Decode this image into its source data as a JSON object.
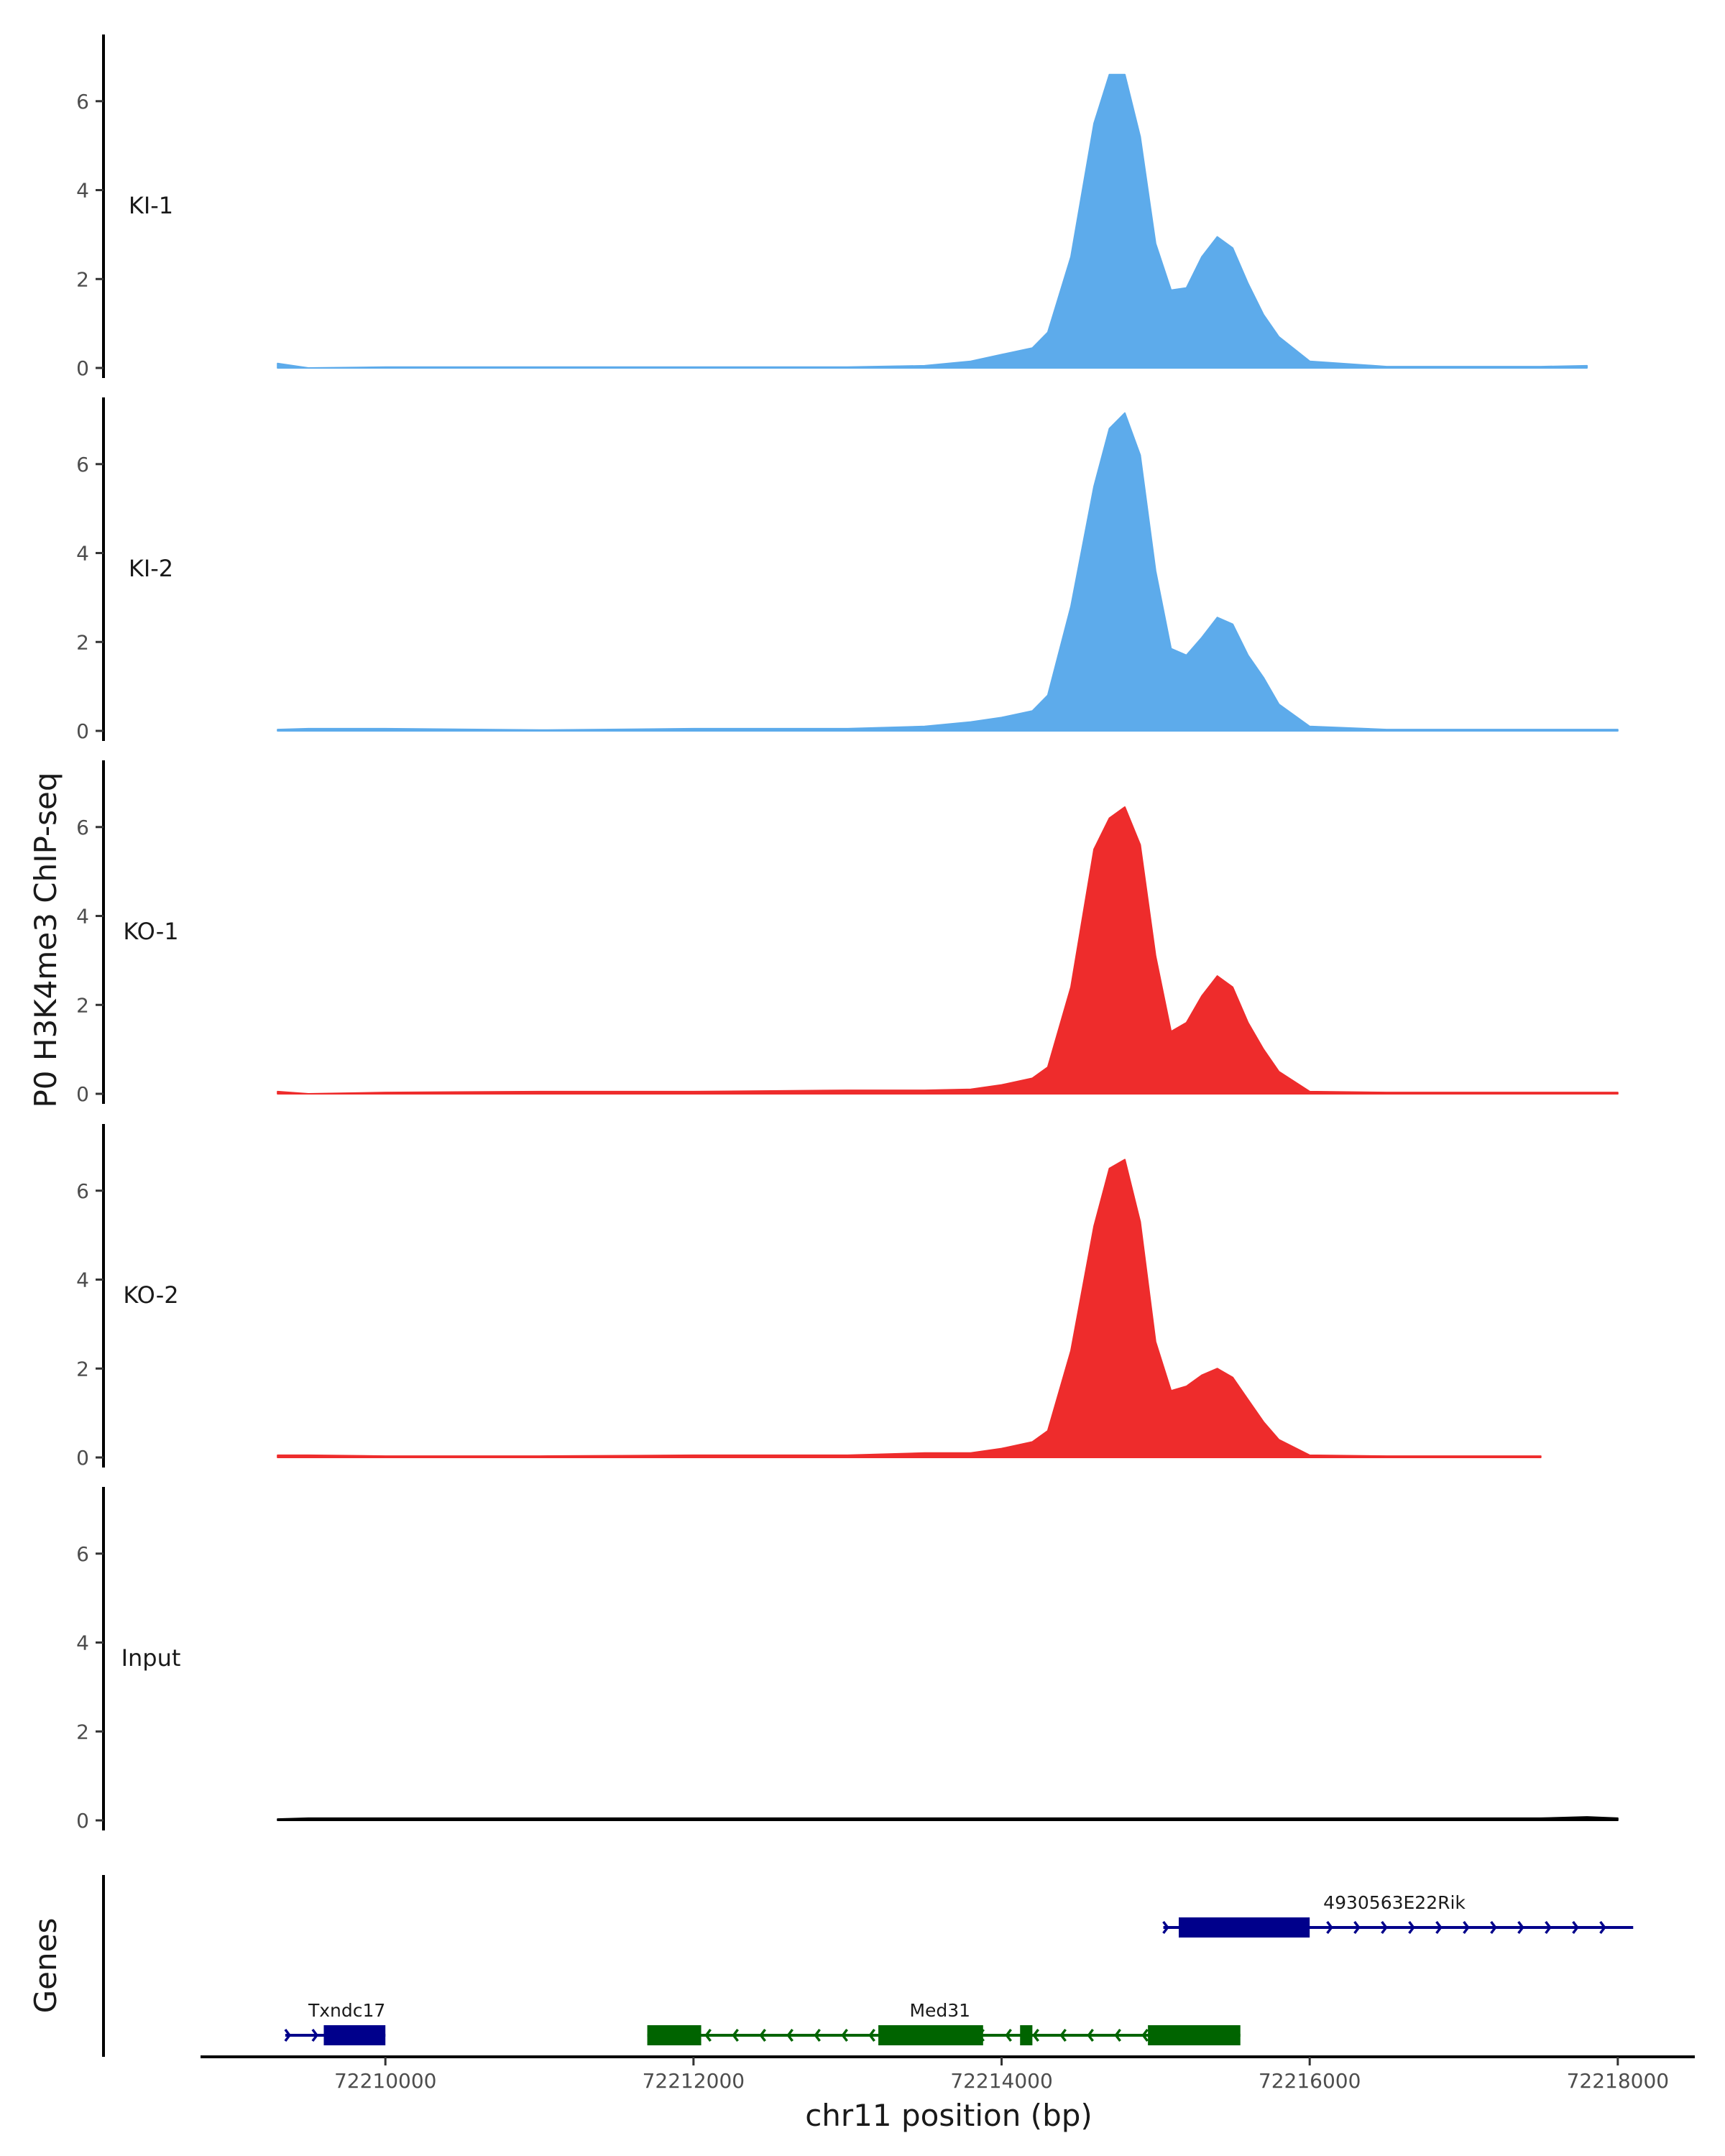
{
  "chart_data": {
    "type": "area",
    "ylabel": "P0 H3K4me3 ChIP-seq",
    "xlabel": "chr11 position (bp)",
    "genes_label": "Genes",
    "xlim": [
      72208800,
      72218500
    ],
    "ylim": [
      0,
      7.5
    ],
    "yticks": [
      "0",
      "2",
      "4",
      "6"
    ],
    "x_ticks": [
      72210000,
      72212000,
      72214000,
      72216000,
      72218000
    ],
    "x_tick_labels": [
      "72210000",
      "72212000",
      "72214000",
      "72216000",
      "72218000"
    ],
    "x": [
      72209300,
      72209500,
      72210000,
      72211000,
      72212000,
      72213000,
      72213500,
      72213800,
      72214000,
      72214200,
      72214300,
      72214450,
      72214600,
      72214700,
      72214800,
      72214900,
      72215000,
      72215100,
      72215200,
      72215300,
      72215400,
      72215500,
      72215600,
      72215700,
      72215800,
      72216000,
      72216500,
      72217000,
      72217500,
      72217800,
      72218000
    ],
    "tracks": [
      {
        "label": "KI-1",
        "color": "#5DABEB",
        "values": [
          0.1,
          0.0,
          0.02,
          0.02,
          0.02,
          0.02,
          0.05,
          0.15,
          0.3,
          0.45,
          0.8,
          2.5,
          5.5,
          6.6,
          6.6,
          5.2,
          2.8,
          1.75,
          1.8,
          2.5,
          2.95,
          2.7,
          1.9,
          1.2,
          0.7,
          0.15,
          0.03,
          0.03,
          0.03,
          0.05,
          null
        ]
      },
      {
        "label": "KI-2",
        "color": "#5DABEB",
        "values": [
          0.03,
          0.05,
          0.05,
          0.02,
          0.05,
          0.05,
          0.1,
          0.2,
          0.3,
          0.45,
          0.8,
          2.8,
          5.5,
          6.8,
          7.15,
          6.2,
          3.6,
          1.85,
          1.7,
          2.1,
          2.55,
          2.4,
          1.7,
          1.2,
          0.6,
          0.1,
          0.03,
          0.03,
          0.03,
          0.03,
          0.03
        ]
      },
      {
        "label": "KO-1",
        "color": "#EE2C2C",
        "values": [
          0.05,
          0.0,
          0.03,
          0.05,
          0.05,
          0.08,
          0.08,
          0.1,
          0.2,
          0.35,
          0.6,
          2.4,
          5.5,
          6.2,
          6.45,
          5.6,
          3.1,
          1.4,
          1.6,
          2.2,
          2.65,
          2.4,
          1.6,
          1.0,
          0.5,
          0.05,
          0.03,
          0.03,
          0.03,
          0.03,
          0.03
        ]
      },
      {
        "label": "KO-2",
        "color": "#EE2C2C",
        "values": [
          0.05,
          0.05,
          0.03,
          0.03,
          0.05,
          0.05,
          0.1,
          0.1,
          0.2,
          0.35,
          0.6,
          2.4,
          5.2,
          6.5,
          6.7,
          5.3,
          2.6,
          1.5,
          1.6,
          1.85,
          2.0,
          1.8,
          1.3,
          0.8,
          0.4,
          0.05,
          0.03,
          0.03,
          0.03,
          null,
          null
        ]
      },
      {
        "label": "Input",
        "color": "#000000",
        "values": [
          0.03,
          0.05,
          0.05,
          0.05,
          0.05,
          0.05,
          0.05,
          0.05,
          0.05,
          0.05,
          0.05,
          0.05,
          0.05,
          0.05,
          0.05,
          0.05,
          0.05,
          0.05,
          0.05,
          0.05,
          0.05,
          0.05,
          0.05,
          0.05,
          0.05,
          0.05,
          0.05,
          0.05,
          0.05,
          0.08,
          0.05
        ]
      }
    ],
    "genes": [
      {
        "name": "Txndc17",
        "strand": "+",
        "color": "#00008B",
        "start": 72209350,
        "end": 72210000,
        "row": 2,
        "exons": [
          [
            72209600,
            72210000
          ]
        ]
      },
      {
        "name": "Med31",
        "strand": "-",
        "color": "#006400",
        "start": 72211700,
        "end": 72215550,
        "row": 2,
        "exons": [
          [
            72211700,
            72212050
          ],
          [
            72213200,
            72213880
          ],
          [
            72214120,
            72214200
          ],
          [
            72214950,
            72215550
          ]
        ]
      },
      {
        "name": "4930563E22Rik",
        "strand": "+",
        "color": "#00008B",
        "start": 72215050,
        "end": 72218100,
        "row": 1,
        "exons": [
          [
            72215150,
            72216000
          ]
        ]
      }
    ]
  }
}
